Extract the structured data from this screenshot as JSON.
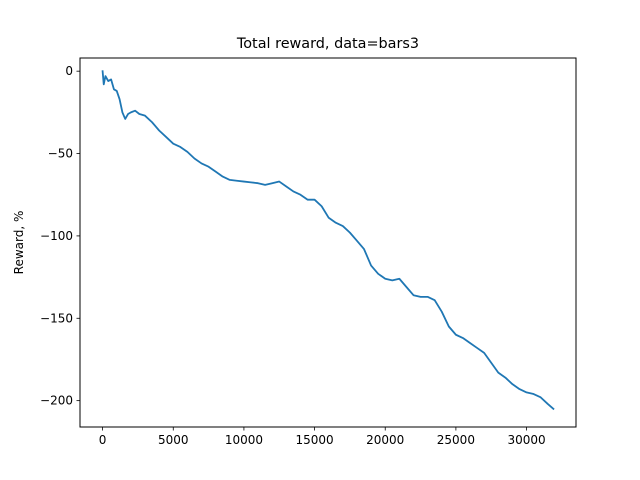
{
  "chart_data": {
    "type": "line",
    "title": "Total reward, data=bars3",
    "xlabel": "",
    "ylabel": "Reward, %",
    "xlim": [
      -1600,
      33500
    ],
    "ylim": [
      -216,
      8
    ],
    "grid": false,
    "legend": "none",
    "xticks": [
      0,
      5000,
      10000,
      15000,
      20000,
      25000,
      30000
    ],
    "xtick_labels": [
      "0",
      "5000",
      "10000",
      "15000",
      "20000",
      "25000",
      "30000"
    ],
    "yticks": [
      0,
      -50,
      -100,
      -150,
      -200
    ],
    "ytick_labels": [
      "0",
      "−50",
      "−100",
      "−150",
      "−200"
    ],
    "colors": {
      "line": "#1f77b4",
      "axes": "#000000",
      "background": "#ffffff"
    },
    "series": [
      {
        "x": [
          0,
          80,
          200,
          400,
          600,
          800,
          1000,
          1200,
          1400,
          1600,
          1800,
          2000,
          2300,
          2600,
          3000,
          3500,
          4000,
          4500,
          5000,
          5500,
          6000,
          6500,
          7000,
          7500,
          8000,
          8500,
          9000,
          9500,
          10000,
          10500,
          11000,
          11500,
          12000,
          12500,
          13000,
          13500,
          14000,
          14500,
          15000,
          15500,
          16000,
          16500,
          17000,
          17500,
          18000,
          18500,
          19000,
          19500,
          20000,
          20500,
          21000,
          21500,
          22000,
          22500,
          23000,
          23500,
          24000,
          24500,
          25000,
          25500,
          26000,
          26500,
          27000,
          27500,
          28000,
          28500,
          29000,
          29500,
          30000,
          30500,
          31000,
          31500,
          31900
        ],
        "y": [
          0,
          -8,
          -3,
          -6,
          -5,
          -11,
          -12,
          -17,
          -25,
          -29,
          -26,
          -25,
          -24,
          -26,
          -27,
          -31,
          -36,
          -40,
          -44,
          -46,
          -49,
          -53,
          -56,
          -58,
          -61,
          -64,
          -66,
          -66.5,
          -67,
          -67.5,
          -68,
          -69,
          -68,
          -67,
          -70,
          -73,
          -75,
          -78,
          -78,
          -82,
          -89,
          -92,
          -94,
          -98,
          -103,
          -108,
          -118,
          -123,
          -126,
          -127,
          -126,
          -131,
          -136,
          -137,
          -137,
          -139,
          -146,
          -155,
          -160,
          -162,
          -165,
          -168,
          -171,
          -177,
          -183,
          -186,
          -190,
          -193,
          -195,
          -196,
          -198,
          -202,
          -205
        ]
      }
    ]
  }
}
